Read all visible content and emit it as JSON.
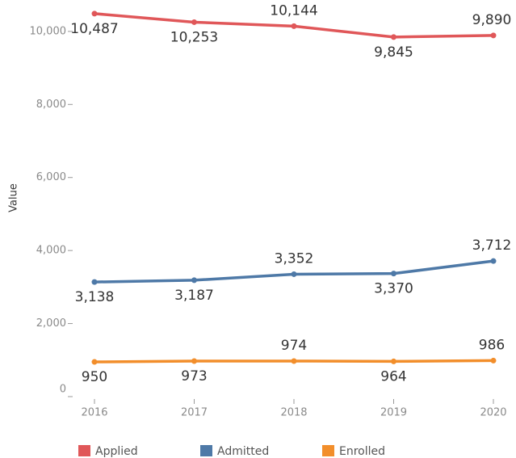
{
  "chart_data": {
    "type": "line",
    "y_label": "Value",
    "categories": [
      "2016",
      "2017",
      "2018",
      "2019",
      "2020"
    ],
    "series": [
      {
        "name": "Applied",
        "color": "#e05759",
        "values": [
          10487,
          10253,
          10144,
          9845,
          9890
        ],
        "value_labels": [
          "10,487",
          "10,253",
          "10,144",
          "9,845",
          "9,890"
        ]
      },
      {
        "name": "Admitted",
        "color": "#4e79a7",
        "values": [
          3138,
          3187,
          3352,
          3370,
          3712
        ],
        "value_labels": [
          "3,138",
          "3,187",
          "3,352",
          "3,370",
          "3,712"
        ]
      },
      {
        "name": "Enrolled",
        "color": "#f28e2b",
        "values": [
          950,
          973,
          974,
          964,
          986
        ]
      }
    ],
    "ylim": [
      0,
      10860
    ],
    "yticks": [
      0,
      {
        "value": 2000,
        "label": "2,000"
      },
      {
        "value": 4000,
        "label": "4,000"
      },
      {
        "value": 6000,
        "label": "6,000"
      },
      {
        "value": 8000,
        "label": "8,000"
      },
      {
        "value": 10000,
        "label": "10,000"
      }
    ],
    "legend": "bottom"
  }
}
